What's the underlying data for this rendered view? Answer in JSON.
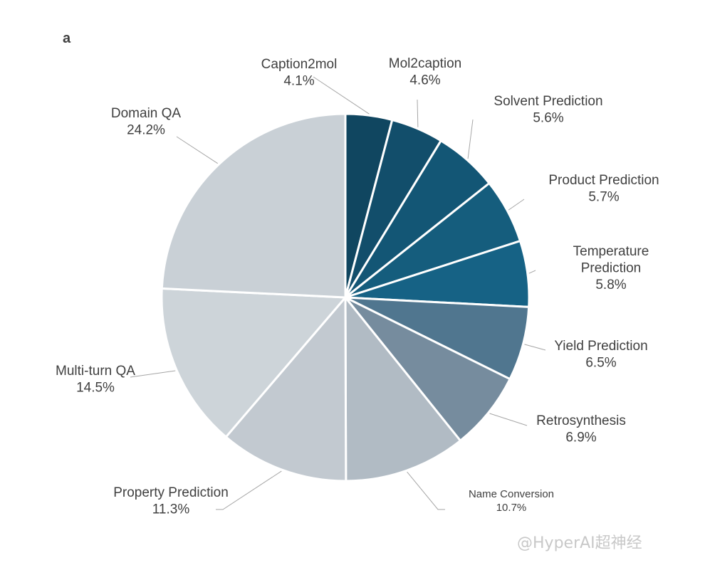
{
  "panel_label": "a",
  "watermark": "@HyperAI超神经",
  "chart_data": {
    "type": "pie",
    "start": "12 o'clock",
    "direction": "clockwise",
    "slices": [
      {
        "name": "Caption2mol",
        "value": 4.1,
        "value_label": "4.1%",
        "color": "#104660"
      },
      {
        "name": "Mol2caption",
        "value": 4.6,
        "value_label": "4.6%",
        "color": "#124e6b"
      },
      {
        "name": "Solvent Prediction",
        "value": 5.6,
        "value_label": "5.6%",
        "color": "#135675"
      },
      {
        "name": "Product Prediction",
        "value": 5.7,
        "value_label": "5.7%",
        "color": "#155d7d"
      },
      {
        "name": "Temperature Prediction",
        "value": 5.8,
        "value_label": "5.8%",
        "color": "#166285"
      },
      {
        "name": "Yield Prediction",
        "value": 6.5,
        "value_label": "6.5%",
        "color": "#50768f"
      },
      {
        "name": "Retrosynthesis",
        "value": 6.9,
        "value_label": "6.9%",
        "color": "#768c9e"
      },
      {
        "name": "Name Conversion",
        "value": 10.7,
        "value_label": "10.7%",
        "color": "#b1bbc4"
      },
      {
        "name": "Property Prediction",
        "value": 11.3,
        "value_label": "11.3%",
        "color": "#c2c9d0"
      },
      {
        "name": "Multi-turn QA",
        "value": 14.5,
        "value_label": "14.5%",
        "color": "#cdd4d9"
      },
      {
        "name": "Domain QA",
        "value": 24.2,
        "value_label": "24.2%",
        "color": "#c9d0d6"
      }
    ]
  }
}
